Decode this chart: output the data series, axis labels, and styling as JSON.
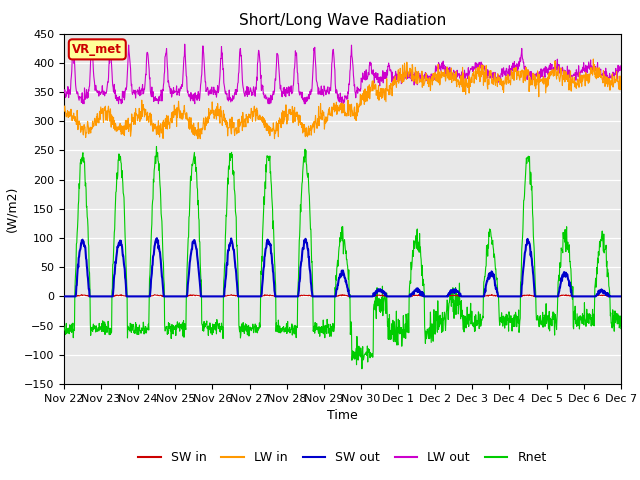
{
  "title": "Short/Long Wave Radiation",
  "xlabel": "Time",
  "ylabel": "(W/m2)",
  "ylim": [
    -150,
    450
  ],
  "yticks": [
    -150,
    -100,
    -50,
    0,
    50,
    100,
    150,
    200,
    250,
    300,
    350,
    400,
    450
  ],
  "x_labels": [
    "Nov 22",
    "Nov 23",
    "Nov 24",
    "Nov 25",
    "Nov 26",
    "Nov 27",
    "Nov 28",
    "Nov 29",
    "Nov 30",
    "Dec 1",
    "Dec 2",
    "Dec 3",
    "Dec 4",
    "Dec 5",
    "Dec 6",
    "Dec 7"
  ],
  "colors": {
    "SW_in": "#cc0000",
    "LW_in": "#ff9900",
    "SW_out": "#0000cc",
    "LW_out": "#cc00cc",
    "Rnet": "#00cc00"
  },
  "bg_color": "#e8e8e8",
  "annotation_text": "VR_met",
  "annotation_bg": "#ffff99",
  "annotation_border": "#cc0000"
}
